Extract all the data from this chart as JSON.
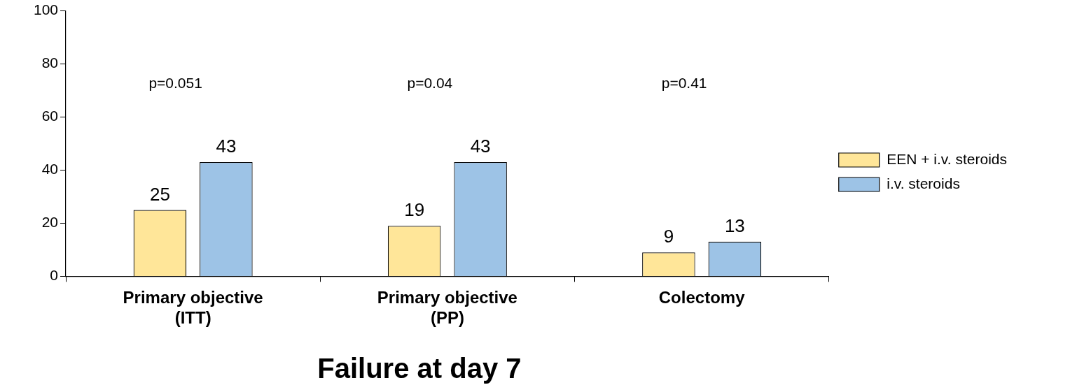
{
  "chart_data": {
    "type": "bar",
    "title": "Failure at day 7",
    "categories": [
      "Primary objective (ITT)",
      "Primary objective (PP)",
      "Colectomy"
    ],
    "series": [
      {
        "name": "EEN + i.v. steroids",
        "color": "#ffe699",
        "values": [
          25,
          19,
          9
        ]
      },
      {
        "name": "i.v. steroids",
        "color": "#9dc3e6",
        "values": [
          43,
          43,
          13
        ]
      }
    ],
    "ylim": [
      0,
      100
    ],
    "yticks": [
      0,
      20,
      40,
      60,
      80,
      100
    ],
    "grid": false,
    "legend": "right",
    "data_labels": true,
    "annotations": [
      "p=0.051",
      "p=0.04",
      "p=0.41"
    ]
  }
}
